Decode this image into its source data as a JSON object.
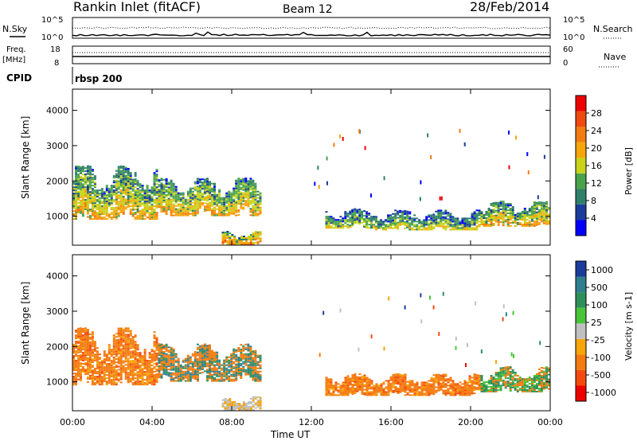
{
  "header": {
    "title": "Rankin Inlet (fitACF)",
    "beam": "Beam 12",
    "date": "28/Feb/2014"
  },
  "side_labels": {
    "nsky": "N.Sky",
    "freq": "Freq.",
    "mhz": "[MHz]",
    "cpid": "CPID",
    "nsearch": "N.Search",
    "nave": "Nave"
  },
  "noise_axis": {
    "left_top": "10^5",
    "left_bottom": "10^0",
    "right_top": "10^5",
    "right_bottom": "10^0"
  },
  "freq_axis": {
    "left_top": "18",
    "left_bottom": "8",
    "right_top": "60",
    "right_bottom": "0"
  },
  "cpid_text": "rbsp 200",
  "colors": {
    "power": [
      "#0000ff",
      "#1c3c9c",
      "#2f7f6a",
      "#49a34b",
      "#c8d31a",
      "#f6a50a",
      "#f47b10",
      "#f04a10",
      "#ee0000"
    ],
    "velocity": [
      "#ee0000",
      "#f44a10",
      "#f47b10",
      "#f6a50a",
      "#c0c0c0",
      "#49c43a",
      "#2f8f5a",
      "#2f7f8f",
      "#1c3c9c"
    ]
  },
  "chart_data": [
    {
      "type": "heatmap",
      "title": "Power",
      "ylabel": "Slant Range [km]",
      "xlabel": "Time UT",
      "x_ticks": [
        "00:00",
        "04:00",
        "08:00",
        "12:00",
        "16:00",
        "20:00",
        "00:00"
      ],
      "y_ticks": [
        1000,
        2000,
        3000,
        4000
      ],
      "ylim": [
        180,
        4600
      ],
      "colorbar_label": "Power [dB]",
      "colorbar_ticks": [
        "4",
        "8",
        "12",
        "16",
        "20",
        "24",
        "28"
      ],
      "blocks": [
        {
          "t0": 0.0,
          "t1": 4.3,
          "r0": 900,
          "r1": 2400,
          "v": 14
        },
        {
          "t0": 4.3,
          "t1": 9.5,
          "r0": 1000,
          "r1": 2050,
          "v": 16
        },
        {
          "t0": 7.5,
          "t1": 9.5,
          "r0": 180,
          "r1": 550,
          "v": 20
        },
        {
          "t0": 12.7,
          "t1": 15.2,
          "r0": 650,
          "r1": 1200,
          "v": 12
        },
        {
          "t0": 15.2,
          "t1": 20.5,
          "r0": 600,
          "r1": 1150,
          "v": 13
        },
        {
          "t0": 20.5,
          "t1": 24.0,
          "r0": 700,
          "r1": 1400,
          "v": 15
        }
      ]
    },
    {
      "type": "heatmap",
      "title": "Velocity",
      "ylabel": "Slant Range [km]",
      "xlabel": "Time UT",
      "x_ticks": [
        "00:00",
        "04:00",
        "08:00",
        "12:00",
        "16:00",
        "20:00",
        "00:00"
      ],
      "y_ticks": [
        1000,
        2000,
        3000,
        4000
      ],
      "ylim": [
        180,
        4600
      ],
      "colorbar_label": "Velocity [m s-1]",
      "colorbar_ticks": [
        "1000",
        "500",
        "100",
        "25",
        "-25",
        "-100",
        "-500",
        "-1000"
      ],
      "blocks": [
        {
          "t0": 0.0,
          "t1": 4.3,
          "r0": 900,
          "r1": 2500,
          "v": -200
        },
        {
          "t0": 4.3,
          "t1": 9.5,
          "r0": 1000,
          "r1": 2050,
          "v": -80
        },
        {
          "t0": 7.5,
          "t1": 9.5,
          "r0": 180,
          "r1": 550,
          "v": 0
        },
        {
          "t0": 12.7,
          "t1": 20.5,
          "r0": 600,
          "r1": 1200,
          "v": -150
        },
        {
          "t0": 20.5,
          "t1": 24.0,
          "r0": 700,
          "r1": 1400,
          "v": 60
        }
      ]
    }
  ]
}
